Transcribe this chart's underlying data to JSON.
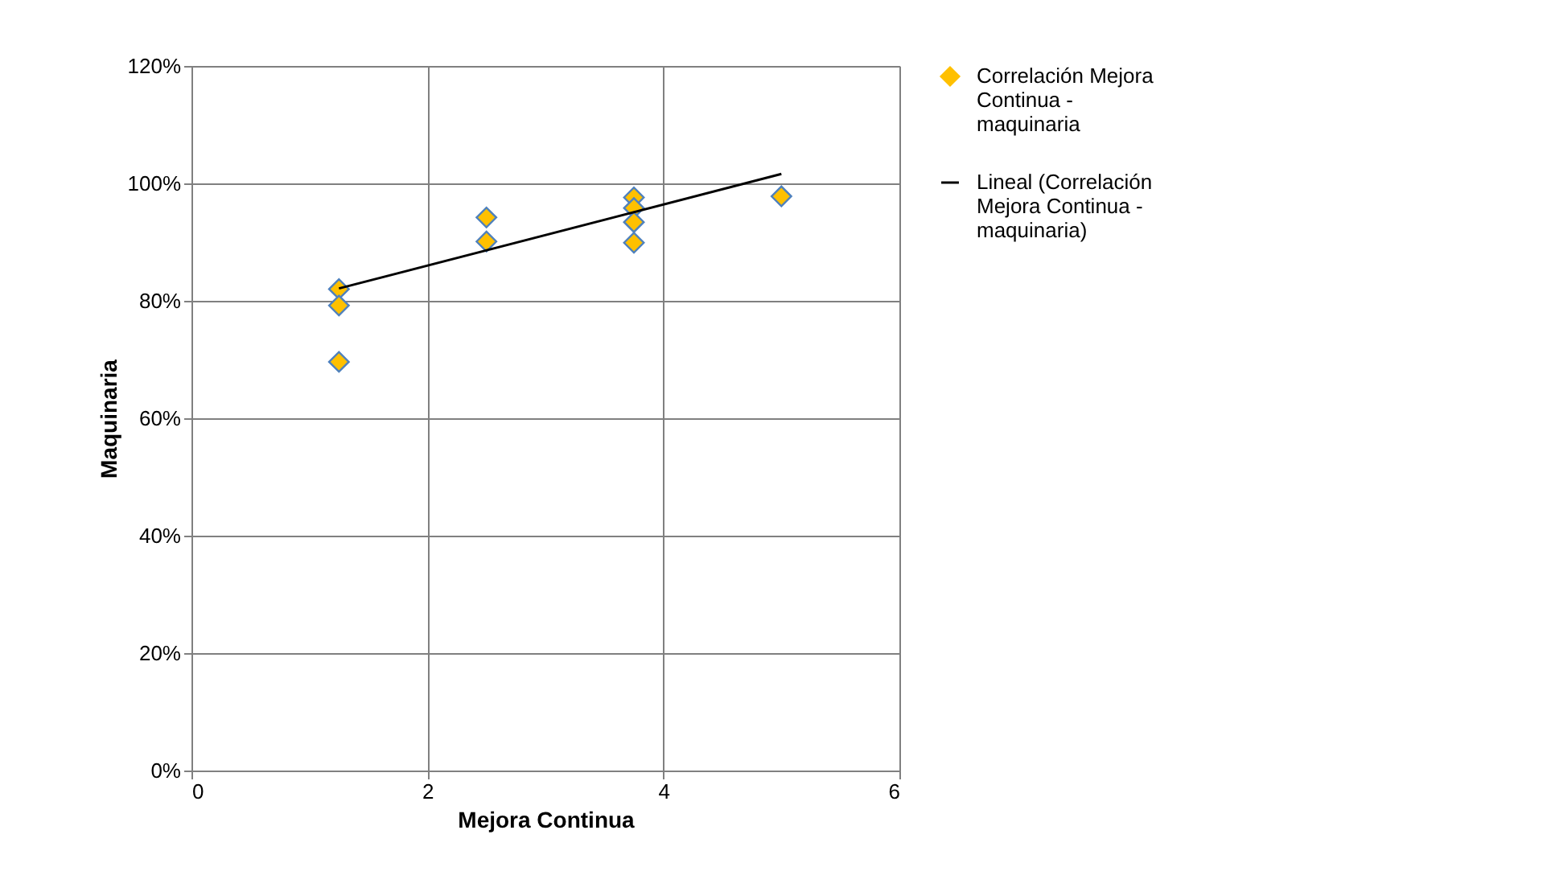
{
  "chart_data": {
    "type": "scatter",
    "xlabel": "Mejora Continua",
    "ylabel": "Maquinaria",
    "xlim": [
      0,
      6
    ],
    "xticks": [
      0,
      2,
      4,
      6
    ],
    "ylim": [
      0,
      120
    ],
    "yticks": [
      {
        "value": 0,
        "label": "0%"
      },
      {
        "value": 20,
        "label": "20%"
      },
      {
        "value": 40,
        "label": "40%"
      },
      {
        "value": 60,
        "label": "60%"
      },
      {
        "value": 80,
        "label": "80%"
      },
      {
        "value": 100,
        "label": "100%"
      },
      {
        "value": 120,
        "label": "120%"
      }
    ],
    "grid": true,
    "legend": "right",
    "series": [
      {
        "name": "Correlación Mejora Continua - maquinaria",
        "marker": "diamond",
        "color": "#ffc000",
        "x": [
          1.25,
          1.25,
          1.25,
          2.5,
          2.5,
          3.75,
          3.75,
          3.75,
          3.75,
          5
        ],
        "values": [
          82,
          79.2,
          69.6,
          94.2,
          90.1,
          97.6,
          95.8,
          93.4,
          89.9,
          97.8
        ]
      },
      {
        "name": "Lineal (Correlación Mejora Continua - maquinaria)",
        "type": "line",
        "color": "#000000",
        "line_style": "solid",
        "x": [
          1.25,
          5
        ],
        "values": [
          82.1,
          101.6
        ]
      }
    ]
  }
}
